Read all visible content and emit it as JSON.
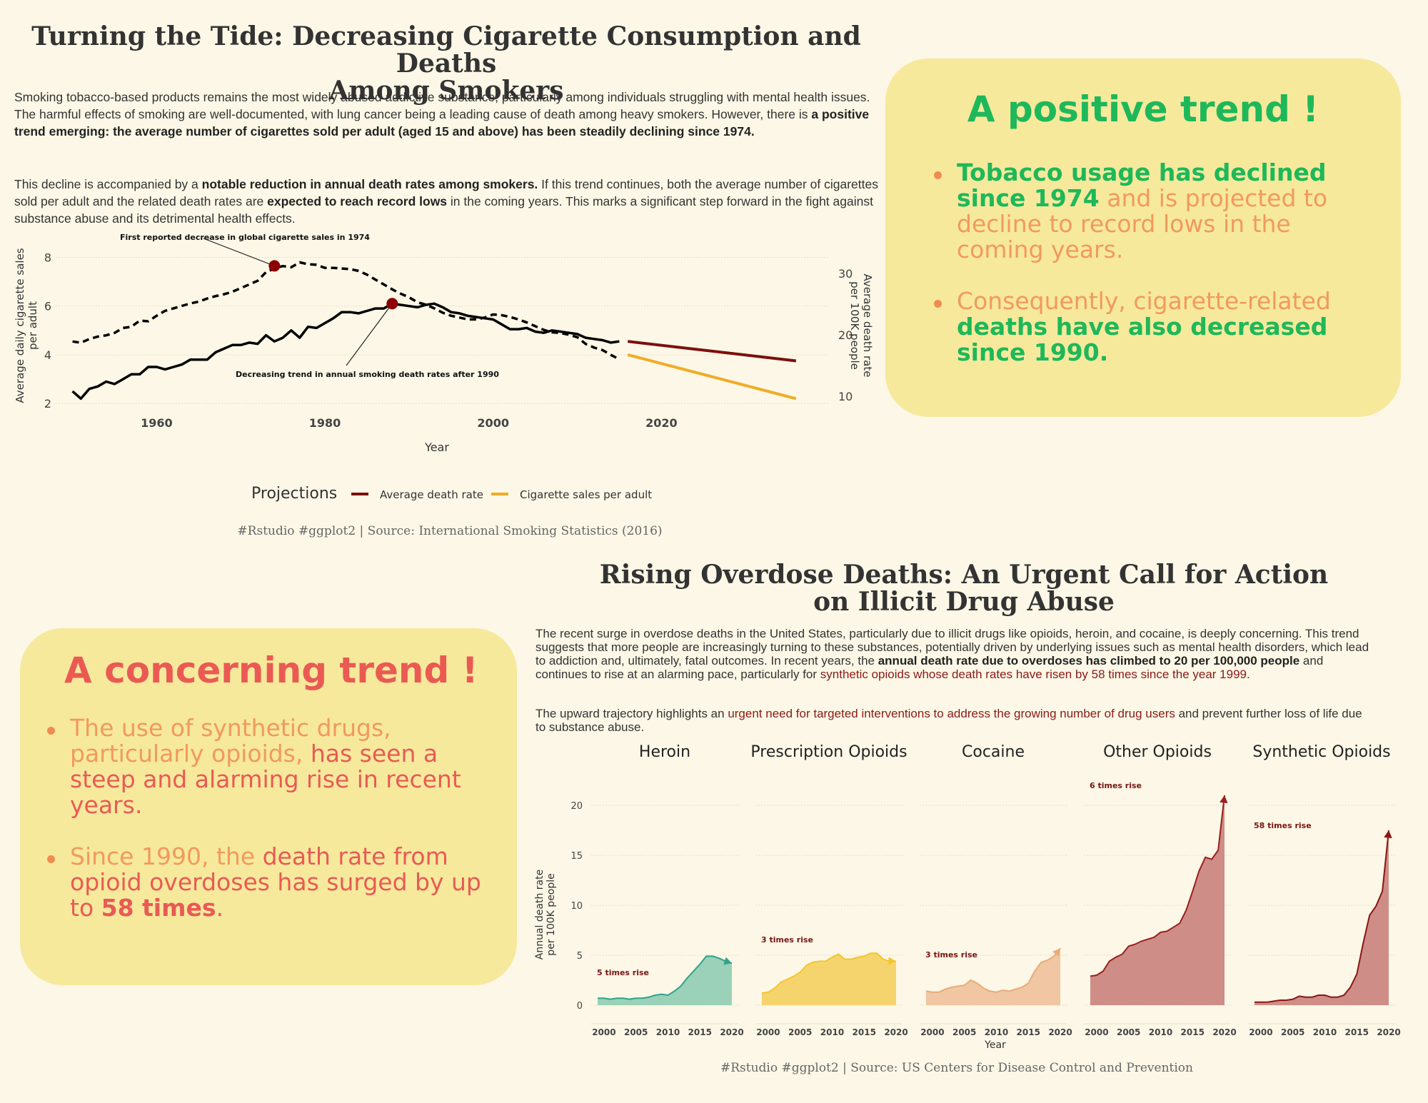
{
  "top": {
    "title_line1": "Turning the Tide: Decreasing Cigarette Consumption and Deaths",
    "title_line2": "Among Smokers",
    "p1_a": "Smoking tobacco-based products remains the most widely abused addictive substance, particularly among individuals struggling with mental health issues. The harmful effects of smoking are well-documented, with lung cancer being a leading cause of death among heavy smokers. However, there is ",
    "p1_b": "a positive trend emerging: the average number of cigarettes sold per adult (aged 15 and above) has been steadily declining since 1974.",
    "p2_a": "This decline is accompanied by a ",
    "p2_b": "notable reduction in annual death rates among smokers.",
    "p2_c": " If this trend continues, both the average number of cigarettes sold per adult and the related death rates are ",
    "p2_d": "expected to reach record lows",
    "p2_e": "  in the coming years. This marks a significant step forward in the fight against substance abuse and its detrimental health effects.",
    "caption": "#Rstudio #ggplot2 | Source: International Smoking Statistics (2016)"
  },
  "positive_card": {
    "heading": "A positive trend !",
    "b1_a": "Tobacco usage has declined since 1974",
    "b1_b": " and is projected to decline to record lows in the coming years.",
    "b2_a": "Consequently, cigarette-related ",
    "b2_b": "deaths have also decreased since 1990."
  },
  "bottom": {
    "title_line1": "Rising Overdose Deaths: An Urgent Call for Action",
    "title_line2": "on Illicit Drug Abuse",
    "p1_a": "The recent surge in overdose deaths in the United States, particularly due to illicit drugs like opioids, heroin, and cocaine, is deeply concerning. This trend suggests that more people are increasingly turning to these substances, potentially driven by underlying issues such as mental health disorders, which lead to addiction and, ultimately, fatal outcomes. In recent years, the ",
    "p1_b": " annual death rate due to overdoses has climbed to 20 per 100,000 people",
    "p1_c": "  and continues to rise at an alarming pace, particularly for ",
    "p1_d": "synthetic opioids whose death rates have risen by 58 times since the year 1999.",
    "p2_a": "The upward trajectory highlights an ",
    "p2_b": "urgent need for targeted interventions to address the growing number of drug users",
    "p2_c": "  and prevent further loss of life due to substance abuse.",
    "caption": "#Rstudio #ggplot2 | Source: US Centers for Disease Control and Prevention"
  },
  "concerning_card": {
    "heading": "A concerning trend !",
    "b1_a": "The use of synthetic drugs, particularly opioids,",
    "b1_b": " has seen a steep and alarming rise in recent years.",
    "b2_a": "Since 1990, the ",
    "b2_b": "death rate from opioid overdoses has surged by up to ",
    "b2_c": "58 times",
    "b2_d": "."
  },
  "chart_data": [
    {
      "type": "line",
      "xlabel": "Year",
      "ylabel": "Average daily cigarette sales per adult",
      "y2label": "Average death rate per 100K people",
      "xlim": [
        1948,
        2040
      ],
      "x_ticks": [
        1960,
        1980,
        2000,
        2020
      ],
      "ylim": [
        1.8,
        8.6
      ],
      "y_ticks": [
        2,
        4,
        6,
        8
      ],
      "y2lim": [
        8,
        35
      ],
      "y2_ticks": [
        10,
        20,
        30
      ],
      "colors": {
        "sales": "#000000",
        "death": "#000000",
        "proj_death": "#7b0f0f",
        "proj_sales": "#f0ac27",
        "point": "#8b0000"
      },
      "annotations": [
        {
          "text": "First reported decrease in global cigarette sales in 1974",
          "x": 1974,
          "y": 7.65,
          "series": "death"
        },
        {
          "text": "Decreasing trend in annual smoking death rates after 1990",
          "x": 1988,
          "y": 6.1,
          "series": "sales"
        }
      ],
      "legend_title": "Projections",
      "legend_position": "bottom",
      "series": [
        {
          "name": "Cigarette sales per adult",
          "style": "solid",
          "axis": "left",
          "x": [
            1950,
            1951,
            1952,
            1953,
            1954,
            1955,
            1956,
            1957,
            1958,
            1959,
            1960,
            1961,
            1962,
            1963,
            1964,
            1965,
            1966,
            1967,
            1968,
            1969,
            1970,
            1971,
            1972,
            1973,
            1974,
            1975,
            1976,
            1977,
            1978,
            1979,
            1980,
            1981,
            1982,
            1983,
            1984,
            1985,
            1986,
            1987,
            1988,
            1989,
            1990,
            1991,
            1992,
            1993,
            1994,
            1995,
            1996,
            1997,
            1998,
            1999,
            2000,
            2001,
            2002,
            2003,
            2004,
            2005,
            2006,
            2007,
            2008,
            2009,
            2010,
            2011,
            2012,
            2013,
            2014,
            2015
          ],
          "y": [
            2.5,
            2.2,
            2.6,
            2.7,
            2.9,
            2.8,
            3.0,
            3.2,
            3.2,
            3.5,
            3.5,
            3.4,
            3.5,
            3.6,
            3.8,
            3.8,
            3.8,
            4.1,
            4.25,
            4.4,
            4.4,
            4.5,
            4.45,
            4.8,
            4.55,
            4.7,
            5.0,
            4.7,
            5.15,
            5.1,
            5.3,
            5.5,
            5.75,
            5.75,
            5.7,
            5.8,
            5.9,
            5.9,
            6.1,
            6.05,
            6.0,
            5.95,
            6.05,
            6.1,
            5.95,
            5.75,
            5.7,
            5.6,
            5.55,
            5.5,
            5.45,
            5.25,
            5.05,
            5.05,
            5.1,
            4.95,
            4.9,
            5.0,
            4.95,
            4.9,
            4.85,
            4.7,
            4.65,
            4.6,
            4.5,
            4.55
          ]
        },
        {
          "name": "Average death rate",
          "style": "dashed",
          "axis": "right",
          "x": [
            1950,
            1951,
            1952,
            1953,
            1954,
            1955,
            1956,
            1957,
            1958,
            1959,
            1960,
            1961,
            1962,
            1963,
            1964,
            1965,
            1966,
            1967,
            1968,
            1969,
            1970,
            1971,
            1972,
            1973,
            1974,
            1975,
            1976,
            1977,
            1978,
            1979,
            1980,
            1981,
            1982,
            1983,
            1984,
            1985,
            1986,
            1987,
            1988,
            1989,
            1990,
            1991,
            1992,
            1993,
            1994,
            1995,
            1996,
            1997,
            1998,
            1999,
            2000,
            2001,
            2002,
            2003,
            2004,
            2005,
            2006,
            2007,
            2008,
            2009,
            2010,
            2011,
            2012,
            2013,
            2014,
            2015
          ],
          "y": [
            18.9,
            18.7,
            19.3,
            19.7,
            19.9,
            20.3,
            21.1,
            21.3,
            22.3,
            22.2,
            23.1,
            23.9,
            24.3,
            24.7,
            25.1,
            25.4,
            25.9,
            26.3,
            26.6,
            27.0,
            27.6,
            28.2,
            28.8,
            30.2,
            30.8,
            31.2,
            31.0,
            31.8,
            31.5,
            31.4,
            30.9,
            30.9,
            30.8,
            30.7,
            30.4,
            29.8,
            29.0,
            28.2,
            27.4,
            26.7,
            26.1,
            25.3,
            24.9,
            24.3,
            23.6,
            23.1,
            22.8,
            22.5,
            22.5,
            22.8,
            23.3,
            23.2,
            22.9,
            22.5,
            22.0,
            21.4,
            20.8,
            20.4,
            20.3,
            20.0,
            19.6,
            18.5,
            17.9,
            17.5,
            16.7,
            16.0
          ]
        },
        {
          "name": "Average death rate",
          "style": "solid",
          "projection": true,
          "axis": "left",
          "x": [
            2016,
            2036
          ],
          "y": [
            4.55,
            3.75
          ]
        },
        {
          "name": "Cigarette sales per adult",
          "style": "solid",
          "projection": true,
          "axis": "left",
          "x": [
            2016,
            2036
          ],
          "y": [
            4.0,
            2.2
          ]
        }
      ]
    },
    {
      "type": "area",
      "xlabel": "Year",
      "ylabel": "Annual death rate per 100K people",
      "ylim": [
        -1,
        22
      ],
      "y_ticks": [
        0,
        5,
        10,
        15,
        20
      ],
      "xlim": [
        1998,
        2021
      ],
      "x_ticks": [
        2000,
        2005,
        2010,
        2015,
        2020
      ],
      "x": [
        1999,
        2000,
        2001,
        2002,
        2003,
        2004,
        2005,
        2006,
        2007,
        2008,
        2009,
        2010,
        2011,
        2012,
        2013,
        2014,
        2015,
        2016,
        2017,
        2018,
        2019,
        2020
      ],
      "panels": [
        {
          "name": "Heroin",
          "color": "#9bd1b8",
          "line": "#2fa38a",
          "label": "5 times rise",
          "values": [
            0.7,
            0.7,
            0.6,
            0.7,
            0.7,
            0.6,
            0.7,
            0.7,
            0.8,
            1.0,
            1.1,
            1.0,
            1.4,
            1.9,
            2.7,
            3.4,
            4.1,
            4.9,
            4.9,
            4.7,
            4.4,
            4.2
          ]
        },
        {
          "name": "Prescription Opioids",
          "color": "#f6d46d",
          "line": "#f3c62d",
          "label": "3 times rise",
          "values": [
            1.2,
            1.3,
            1.7,
            2.3,
            2.6,
            2.9,
            3.3,
            4.0,
            4.3,
            4.4,
            4.4,
            4.8,
            5.1,
            4.6,
            4.6,
            4.8,
            4.9,
            5.2,
            5.2,
            4.6,
            4.4,
            4.4
          ]
        },
        {
          "name": "Cocaine",
          "color": "#f0c7a2",
          "line": "#e8ab7a",
          "label": "3 times rise",
          "values": [
            1.4,
            1.3,
            1.3,
            1.6,
            1.8,
            1.9,
            2.0,
            2.5,
            2.2,
            1.7,
            1.4,
            1.3,
            1.5,
            1.4,
            1.6,
            1.8,
            2.2,
            3.4,
            4.3,
            4.5,
            4.9,
            5.7
          ]
        },
        {
          "name": "Other Opioids",
          "color": "#cf8d87",
          "line": "#9b1f1f",
          "label": "6 times rise",
          "values": [
            2.9,
            3.0,
            3.4,
            4.4,
            4.8,
            5.1,
            5.9,
            6.1,
            6.4,
            6.6,
            6.8,
            7.3,
            7.4,
            7.8,
            8.2,
            9.5,
            11.4,
            13.4,
            14.8,
            14.6,
            15.5,
            21.0
          ]
        },
        {
          "name": "Synthetic Opioids",
          "color": "#cf8d87",
          "line": "#8b1515",
          "label": "58 times rise",
          "values": [
            0.3,
            0.3,
            0.3,
            0.4,
            0.5,
            0.5,
            0.6,
            0.9,
            0.8,
            0.8,
            1.0,
            1.0,
            0.8,
            0.8,
            1.0,
            1.8,
            3.1,
            6.2,
            9.0,
            9.9,
            11.4,
            17.5
          ]
        }
      ]
    }
  ]
}
